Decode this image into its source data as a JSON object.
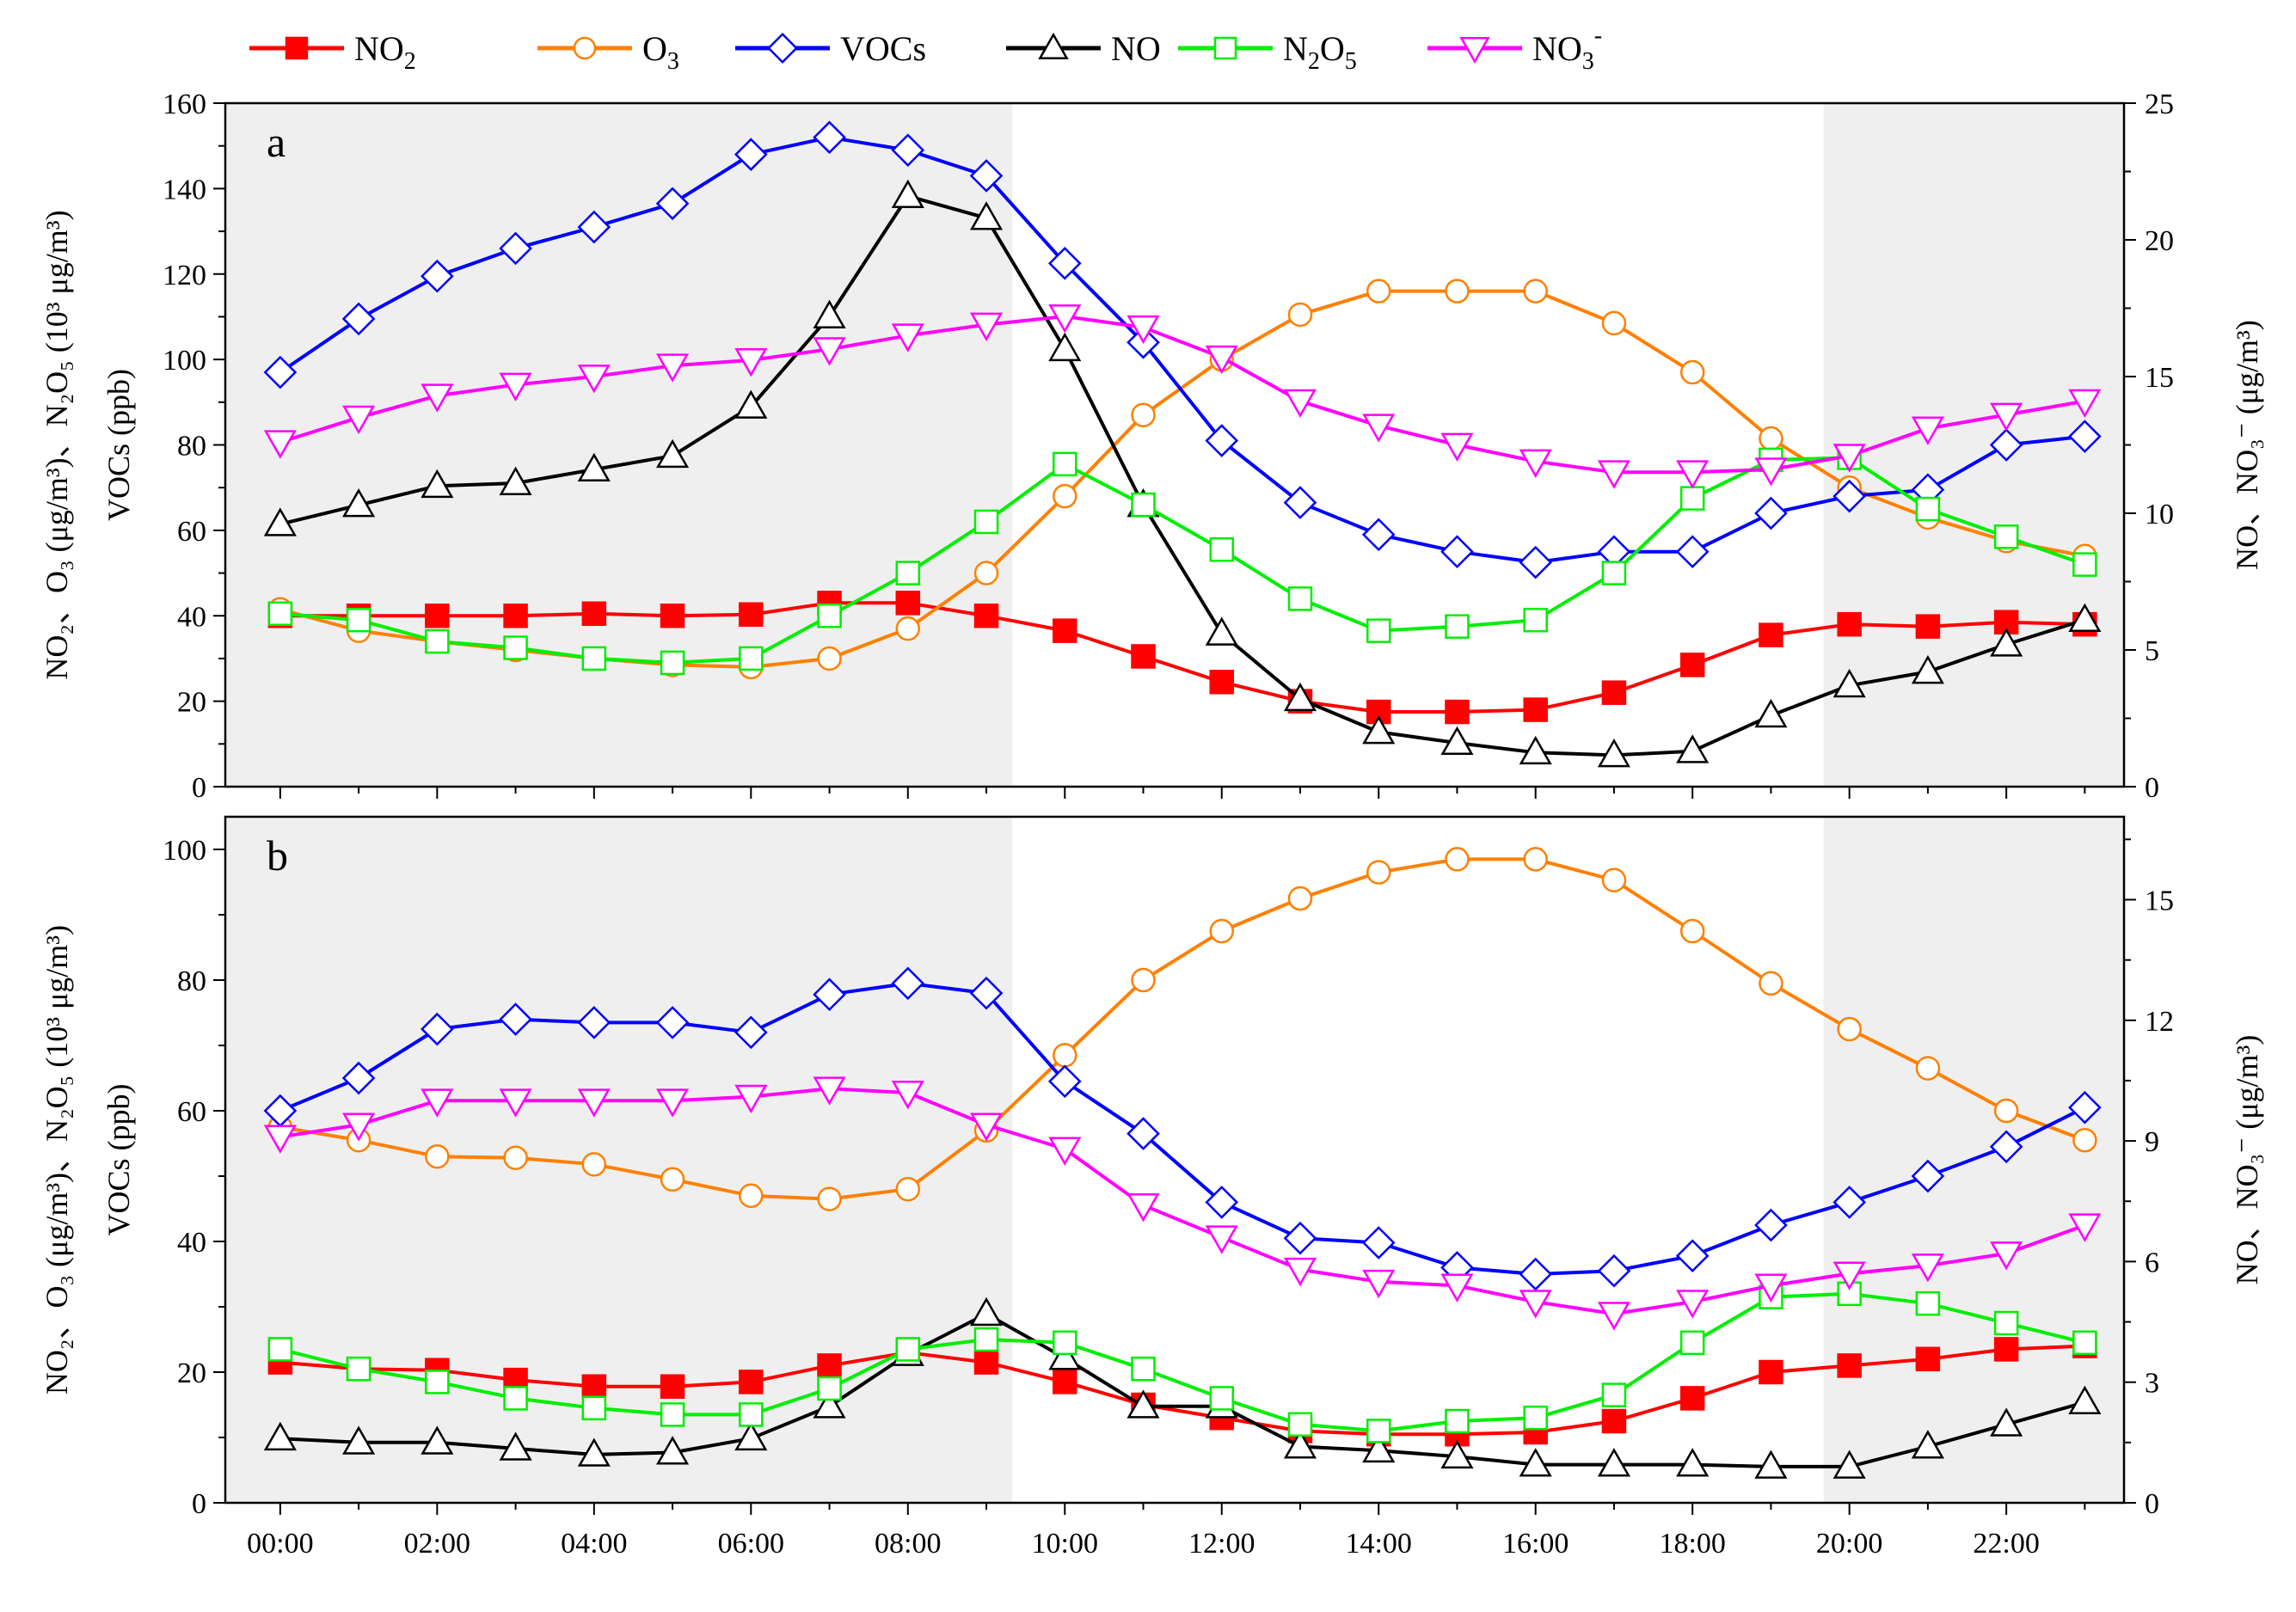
{
  "chart_data": {
    "type": "line",
    "x_ticks": [
      "00:00",
      "02:00",
      "04:00",
      "06:00",
      "08:00",
      "10:00",
      "12:00",
      "14:00",
      "16:00",
      "18:00",
      "20:00",
      "22:00"
    ],
    "x_range": [
      -0.7,
      23.5
    ],
    "shaded_periods": [
      [
        -0.7,
        9.33
      ],
      [
        19.67,
        23.5
      ]
    ],
    "legend": [
      {
        "key": "NO2",
        "label": "NO",
        "sub": "2",
        "sup": "",
        "color": "#ff0000",
        "marker": "square-filled"
      },
      {
        "key": "O3",
        "label": "O",
        "sub": "3",
        "sup": "",
        "color": "#ff8000",
        "marker": "circle"
      },
      {
        "key": "VOCs",
        "label": "VOCs",
        "sub": "",
        "sup": "",
        "color": "#0000ff",
        "marker": "diamond"
      },
      {
        "key": "NO",
        "label": "NO",
        "sub": "",
        "sup": "",
        "color": "#000000",
        "marker": "triangle-up"
      },
      {
        "key": "N2O5",
        "label": "N",
        "sub": "2",
        "mid": "O",
        "sub2": "5",
        "sup": "",
        "color": "#00ee00",
        "marker": "square"
      },
      {
        "key": "NO3",
        "label": "NO",
        "sub": "3",
        "sup": "-",
        "color": "#ff00ff",
        "marker": "triangle-down"
      }
    ],
    "panels": [
      {
        "label": "a",
        "left_axis": {
          "min": 0,
          "max": 160,
          "ticks": [
            "0",
            "20",
            "40",
            "60",
            "80",
            "100",
            "120",
            "140",
            "160"
          ],
          "title_line1": "NO₂、O₃ (μg/m³)、N₂O₅ (10³ μg/m³)",
          "title_line2": "VOCs (ppb)"
        },
        "right_axis": {
          "min": 0,
          "max": 25,
          "ticks": [
            "0",
            "5",
            "10",
            "15",
            "20",
            "25"
          ],
          "title": "NO、NO₃⁻ (μg/m³)"
        },
        "series": [
          {
            "key": "NO2",
            "axis": "left",
            "values": [
              40,
              40,
              40,
              40,
              40.5,
              40,
              40.3,
              43,
              43,
              40,
              36.5,
              30.5,
              24.5,
              20,
              17.5,
              17.5,
              18,
              22,
              28.5,
              35.5,
              38,
              37.5,
              38.5,
              38
            ]
          },
          {
            "key": "O3",
            "axis": "left",
            "values": [
              41.5,
              36.5,
              34,
              32,
              30,
              28.5,
              28,
              30,
              37,
              50,
              68,
              87,
              100,
              110.5,
              116,
              116,
              116,
              108.5,
              97,
              81.5,
              70,
              63,
              57.5,
              54
            ]
          },
          {
            "key": "VOCs",
            "axis": "left",
            "values": [
              97,
              109.5,
              119.5,
              126,
              131,
              136.5,
              148,
              152,
              149,
              143,
              122.5,
              104,
              81,
              66.5,
              59,
              55,
              52.5,
              55,
              55,
              64,
              68,
              69.5,
              80,
              82
            ]
          },
          {
            "key": "NO",
            "axis": "right",
            "values": [
              9.6,
              10.3,
              11,
              11.1,
              11.6,
              12.1,
              13.9,
              17.2,
              21.6,
              20.8,
              16,
              10.3,
              5.6,
              3.2,
              2,
              1.6,
              1.25,
              1.15,
              1.3,
              2.6,
              3.7,
              4.2,
              5.2,
              6.1
            ]
          },
          {
            "key": "N2O5",
            "axis": "left",
            "values": [
              40.5,
              39,
              34,
              32.5,
              30,
              29,
              30,
              40,
              50,
              62,
              75.5,
              66,
              55.5,
              44,
              36.5,
              37.5,
              39,
              50,
              67.5,
              76.5,
              77,
              65,
              58.5,
              52
            ]
          },
          {
            "key": "NO3",
            "axis": "right",
            "values": [
              12.6,
              13.5,
              14.3,
              14.7,
              15,
              15.4,
              15.6,
              16,
              16.5,
              16.9,
              17.2,
              16.8,
              15.7,
              14.1,
              13.2,
              12.5,
              11.9,
              11.5,
              11.5,
              11.6,
              12.1,
              13.1,
              13.6,
              14.1
            ]
          }
        ]
      },
      {
        "label": "b",
        "left_axis": {
          "min": 0,
          "max": 105,
          "ticks": [
            "0",
            "20",
            "40",
            "60",
            "80",
            "100"
          ],
          "title_line1": "NO₂、O₃ (μg/m³)、N₂O₅ (10³ μg/m³)",
          "title_line2": "VOCs (ppb)"
        },
        "right_axis": {
          "min": 0,
          "max": 17.0625,
          "ticks": [
            "0",
            "3",
            "6",
            "9",
            "12",
            "15"
          ],
          "title": "NO、NO₃⁻ (μg/m³)"
        },
        "series": [
          {
            "key": "NO2",
            "axis": "left",
            "values": [
              21.5,
              20.5,
              20.3,
              18.8,
              17.8,
              17.8,
              18.5,
              21,
              23,
              21.5,
              18.5,
              15,
              13,
              11,
              10.5,
              10.5,
              10.8,
              12.5,
              16,
              20,
              21,
              22,
              23.5,
              24
            ]
          },
          {
            "key": "O3",
            "axis": "left",
            "values": [
              57.5,
              55.5,
              53,
              52.8,
              51.8,
              49.5,
              47,
              46.5,
              48,
              57,
              68.5,
              80,
              87.5,
              92.5,
              96.5,
              98.5,
              98.5,
              95.3,
              87.5,
              79.5,
              72.5,
              66.5,
              60,
              55.5
            ]
          },
          {
            "key": "VOCs",
            "axis": "left",
            "values": [
              60,
              65,
              72.5,
              74,
              73.5,
              73.5,
              72,
              77.8,
              79.5,
              78,
              64.5,
              56.5,
              46,
              40.5,
              39.8,
              36,
              35,
              35.5,
              37.8,
              42.5,
              46,
              50,
              54.5,
              60.5
            ]
          },
          {
            "key": "NO",
            "axis": "right",
            "values": [
              1.6,
              1.5,
              1.5,
              1.35,
              1.2,
              1.25,
              1.6,
              2.4,
              3.7,
              4.7,
              3.6,
              2.4,
              2.4,
              1.4,
              1.3,
              1.15,
              0.95,
              0.95,
              0.95,
              0.9,
              0.9,
              1.4,
              1.95,
              2.5
            ]
          },
          {
            "key": "N2O5",
            "axis": "left",
            "values": [
              23.5,
              20.5,
              18.5,
              16,
              14.5,
              13.5,
              13.5,
              17.5,
              23.5,
              25,
              24.5,
              20.5,
              16,
              12,
              11,
              12.5,
              13,
              16.5,
              24.5,
              31.5,
              32,
              30.5,
              27.5,
              24.5
            ]
          },
          {
            "key": "NO3",
            "axis": "right",
            "values": [
              9.1,
              9.4,
              10,
              10,
              10,
              10,
              10.1,
              10.3,
              10.2,
              9.4,
              8.8,
              7.4,
              6.6,
              5.8,
              5.5,
              5.4,
              5,
              4.7,
              5,
              5.4,
              5.7,
              5.9,
              6.2,
              6.9
            ]
          }
        ]
      }
    ]
  }
}
